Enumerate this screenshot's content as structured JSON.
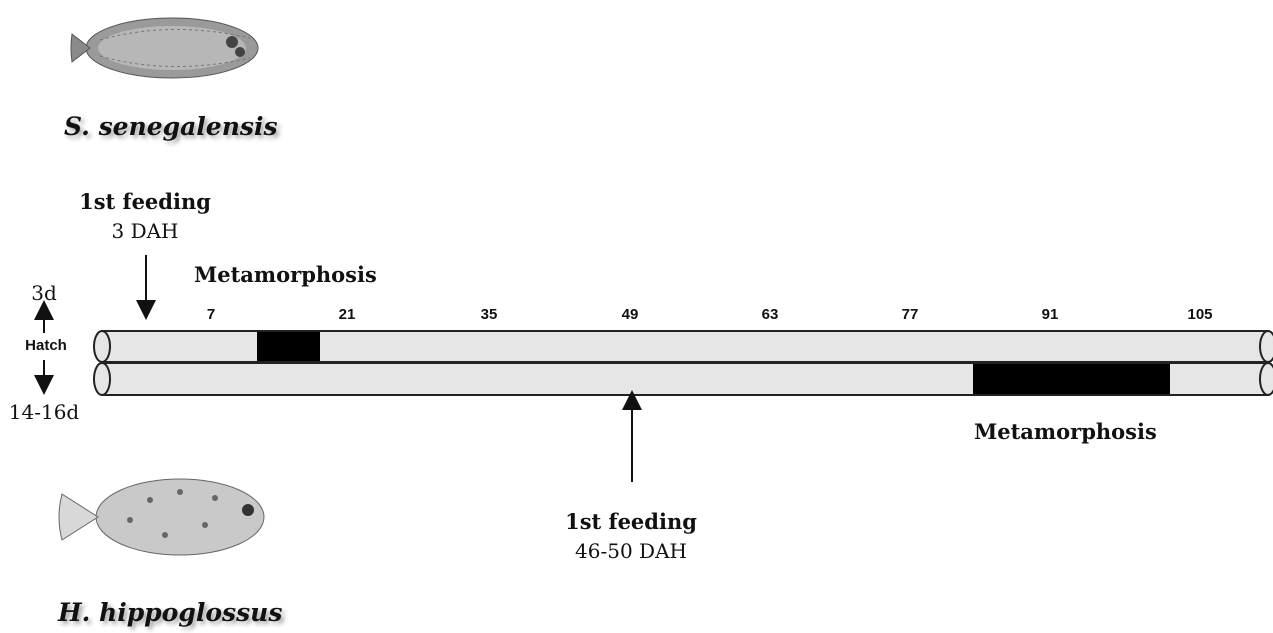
{
  "species": {
    "top": "S. senegalensis",
    "bottom": "H. hippoglossus",
    "top_icon": "sole-fish-icon",
    "bottom_icon": "halibut-fish-icon"
  },
  "top_timeline": {
    "first_feeding_label": "1st feeding",
    "first_feeding_value": "3 DAH",
    "metamorphosis_label": "Metamorphosis",
    "hatch_time": "3d"
  },
  "bottom_timeline": {
    "first_feeding_label": "1st feeding",
    "first_feeding_value": "46-50 DAH",
    "metamorphosis_label": "Metamorphosis",
    "hatch_time": "14-16d"
  },
  "hatch_label": "Hatch",
  "axis_ticks": [
    "7",
    "21",
    "35",
    "49",
    "63",
    "77",
    "91",
    "105"
  ],
  "colors": {
    "bar_fill": "#e6e6e6",
    "bar_stroke": "#222222",
    "phase_fill": "#000000"
  }
}
